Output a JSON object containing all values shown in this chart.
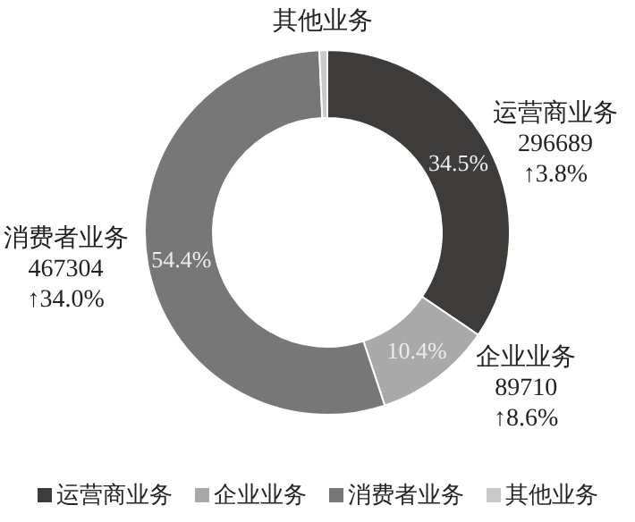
{
  "chart_data": {
    "type": "donut",
    "categories": [
      "运营商业务",
      "企业业务",
      "消费者业务",
      "其他业务"
    ],
    "values": [
      34.5,
      10.4,
      54.4,
      0.7
    ],
    "value_labels": [
      "34.5%",
      "10.4%",
      "54.4%",
      null
    ],
    "colors": [
      "#3e3b3b",
      "#a9a9a9",
      "#777777",
      "#c9c9c9"
    ],
    "annotations": [
      "296689\n↑3.8%",
      "89710\n↑8.6%",
      "467304\n↑34.0%"
    ],
    "legend": "bottom"
  }
}
